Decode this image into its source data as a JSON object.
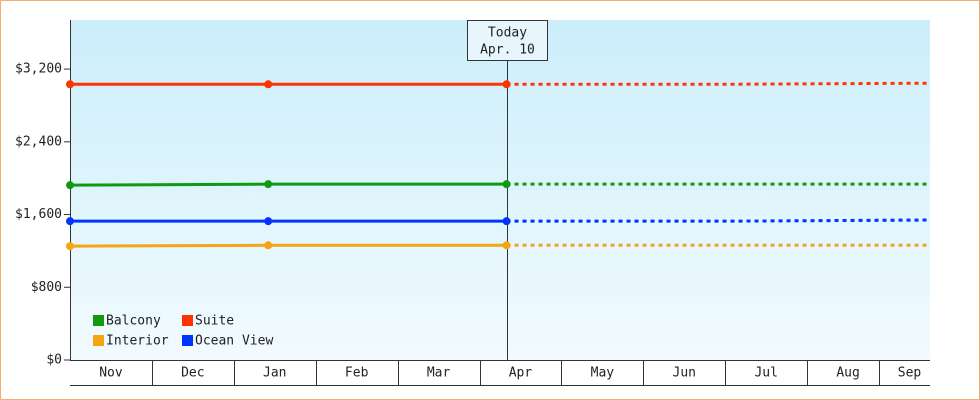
{
  "chart_data": {
    "type": "line",
    "x": [
      0,
      2.42,
      5.33,
      8,
      10.5
    ],
    "xlim": [
      0,
      10.5
    ],
    "xticks": [
      {
        "value": 0.5,
        "label": "Nov"
      },
      {
        "value": 1.5,
        "label": "Dec"
      },
      {
        "value": 2.5,
        "label": "Jan"
      },
      {
        "value": 3.5,
        "label": "Feb"
      },
      {
        "value": 4.5,
        "label": "Mar"
      },
      {
        "value": 5.5,
        "label": "Apr"
      },
      {
        "value": 6.5,
        "label": "May"
      },
      {
        "value": 7.5,
        "label": "Jun"
      },
      {
        "value": 8.5,
        "label": "Jul"
      },
      {
        "value": 9.5,
        "label": "Aug"
      },
      {
        "value": 10.25,
        "label": "Sep"
      }
    ],
    "ylim": [
      0,
      3740
    ],
    "yticks": [
      {
        "value": 0,
        "label": "$0"
      },
      {
        "value": 800,
        "label": "$800"
      },
      {
        "value": 1600,
        "label": "$1,600"
      },
      {
        "value": 2400,
        "label": "$2,400"
      },
      {
        "value": 3200,
        "label": "$3,200"
      }
    ],
    "annotation": {
      "text": [
        "Today",
        "Apr. 10"
      ],
      "x": 5.33
    },
    "series": [
      {
        "name": "Balcony",
        "color": "#119911",
        "values": [
          1923,
          1934,
          1934,
          1934,
          1934
        ]
      },
      {
        "name": "Suite",
        "color": "#ff3300",
        "values": [
          3033,
          3033,
          3033,
          3033,
          3045
        ]
      },
      {
        "name": "Interior",
        "color": "#f5a511",
        "values": [
          1253,
          1262,
          1262,
          1262,
          1262
        ]
      },
      {
        "name": "Ocean View",
        "color": "#0033ff",
        "values": [
          1527,
          1527,
          1527,
          1527,
          1540
        ]
      }
    ],
    "legend": "lower-left"
  }
}
